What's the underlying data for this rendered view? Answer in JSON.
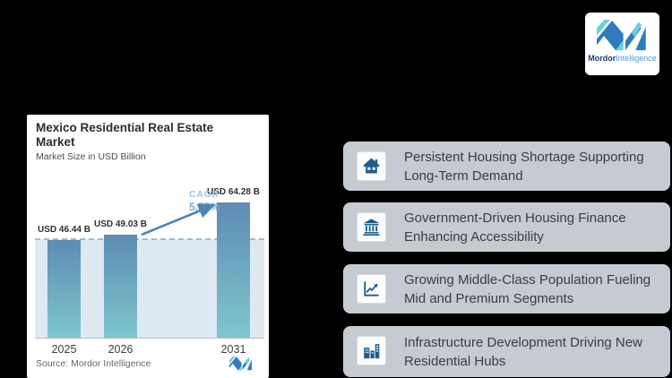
{
  "logo": {
    "brand_bold": "Mordor",
    "brand_light": "Intelligence"
  },
  "chart_card": {
    "title": "Mexico Residential Real Estate Market",
    "subtitle": "Market Size in USD Billion",
    "cagr_label": "CAGR",
    "cagr_value": "5.57%",
    "source": "Source: Mordor Intelligence"
  },
  "chart_data": {
    "type": "bar",
    "title": "Mexico Residential Real Estate Market",
    "subtitle": "Market Size in USD Billion",
    "unit": "USD Billion",
    "categories": [
      "2025",
      "2026",
      "2031"
    ],
    "values": [
      46.44,
      49.03,
      64.28
    ],
    "value_labels": [
      "USD 46.44 B",
      "USD 49.03 B",
      "USD 64.28 B"
    ],
    "cagr_percent": 5.57,
    "cagr_period": "2026-2031",
    "legend": "none",
    "grid": "off",
    "baseline_band": true,
    "bar_gradient_top": "#5d8cb4",
    "bar_gradient_bottom": "#7fc6ce"
  },
  "drivers": [
    {
      "icon": "house-icon",
      "text": "Persistent Housing Shortage Supporting Long-Term Demand"
    },
    {
      "icon": "bank-icon",
      "text": "Government-Driven Housing Finance Enhancing Accessibility"
    },
    {
      "icon": "chart-growth-icon",
      "text": "Growing Middle-Class Population Fueling Mid and Premium Segments"
    },
    {
      "icon": "buildings-icon",
      "text": "Infrastructure Development Driving New Residential Hubs"
    }
  ],
  "colors": {
    "background": "#000000",
    "card_background": "#ffffff",
    "driver_box_background": "#c6cbd2",
    "icon_glyph": "#1d5e8c",
    "band": "#dee9f2",
    "dashed_line": "#9fbdd3",
    "arrow": "#4c86b8",
    "cagr_text": "#76a9d4",
    "logo_blue": "#2e7cbe",
    "logo_teal": "#6fcfda"
  }
}
